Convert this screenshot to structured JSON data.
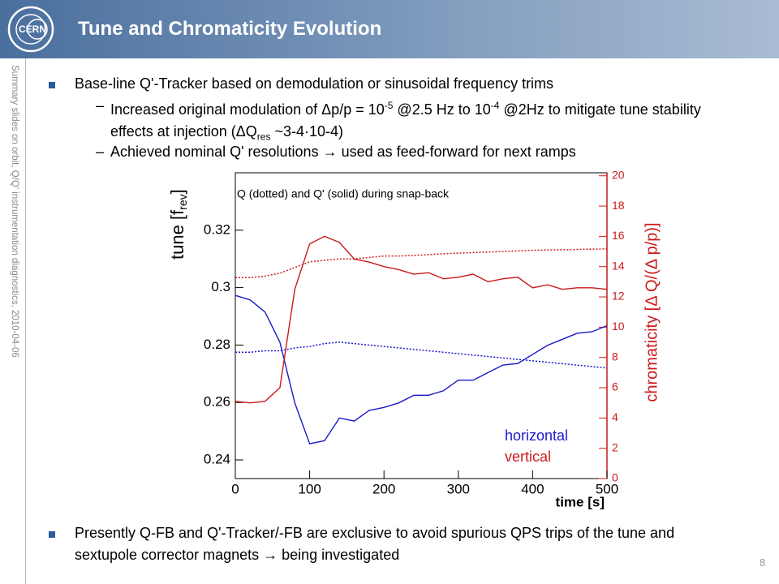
{
  "header": {
    "title": "Tune and Chromaticity Evolution"
  },
  "sidebar": "Summary slides on orbit, Q/Q' instrumentation diagnostics, 2010-04-06",
  "bullets": [
    {
      "text": "Base-line Q'-Tracker based on demodulation or sinusoidal frequency trims",
      "sub": [
        {
          "parts": [
            "Increased original modulation of Δp/p = 10",
            "-5",
            " @2.5 Hz to 10",
            "-4",
            " @2Hz to mitigate tune stability effects at injection (ΔQ",
            "res",
            " ~3-4·10-4)"
          ]
        },
        {
          "parts": [
            "Achieved nominal Q' resolutions → used as feed-forward for next ramps"
          ]
        }
      ]
    },
    {
      "text": "Presently Q-FB and Q'-Tracker/-FB are exclusive to avoid spurious QPS trips of the tune and sextupole corrector magnets → being investigated"
    }
  ],
  "page_number": "8",
  "chart_data": {
    "type": "line",
    "annotation": "Q (dotted) and Q' (solid) during snap-back",
    "xlabel": "time [s]",
    "ylabel_parts": [
      "tune [f",
      "rev",
      "]"
    ],
    "y2label": "chromaticity [Δ Q/(Δ p/p)]",
    "x": [
      0,
      20,
      40,
      60,
      80,
      100,
      120,
      140,
      160,
      180,
      200,
      220,
      240,
      260,
      280,
      300,
      320,
      340,
      360,
      380,
      400,
      420,
      440,
      460,
      480,
      500
    ],
    "xlim": [
      0,
      500
    ],
    "xticks": [
      0,
      100,
      200,
      300,
      400,
      500
    ],
    "ylim": [
      0.2335,
      0.34
    ],
    "yticks": [
      0.24,
      0.26,
      0.28,
      0.3,
      0.32
    ],
    "y2lim": [
      0,
      20.2
    ],
    "y2ticks": [
      0,
      2,
      4,
      6,
      8,
      10,
      12,
      14,
      16,
      18,
      20
    ],
    "series": [
      {
        "name": "horizontal",
        "color": "#1a1acc",
        "tune": [
          0.2775,
          0.2775,
          0.278,
          0.278,
          0.279,
          0.2795,
          0.2805,
          0.281,
          0.2805,
          0.28,
          0.2795,
          0.279,
          0.2785,
          0.278,
          0.2775,
          0.277,
          0.2765,
          0.276,
          0.2755,
          0.275,
          0.2745,
          0.274,
          0.2735,
          0.273,
          0.2725,
          0.272
        ],
        "chromaticity": [
          12.1,
          11.8,
          11,
          9,
          5,
          2.3,
          2.5,
          4,
          3.8,
          4.5,
          4.7,
          5,
          5.5,
          5.5,
          5.8,
          6.5,
          6.5,
          7,
          7.5,
          7.6,
          8.2,
          8.8,
          9.2,
          9.6,
          9.7,
          10.1
        ]
      },
      {
        "name": "vertical",
        "color": "#cc1a1a",
        "tune": [
          0.3035,
          0.3035,
          0.304,
          0.305,
          0.307,
          0.309,
          0.3095,
          0.31,
          0.31,
          0.3105,
          0.311,
          0.311,
          0.3112,
          0.3115,
          0.3118,
          0.312,
          0.3122,
          0.3124,
          0.3126,
          0.3128,
          0.313,
          0.3131,
          0.3132,
          0.3133,
          0.3134,
          0.3135
        ],
        "chromaticity": [
          5.1,
          5,
          5.1,
          6,
          12.5,
          15.5,
          16,
          15.6,
          14.5,
          14.3,
          14,
          13.8,
          13.5,
          13.6,
          13.2,
          13.3,
          13.5,
          13,
          13.2,
          13.3,
          12.6,
          12.8,
          12.5,
          12.6,
          12.6,
          12.5
        ]
      }
    ]
  }
}
